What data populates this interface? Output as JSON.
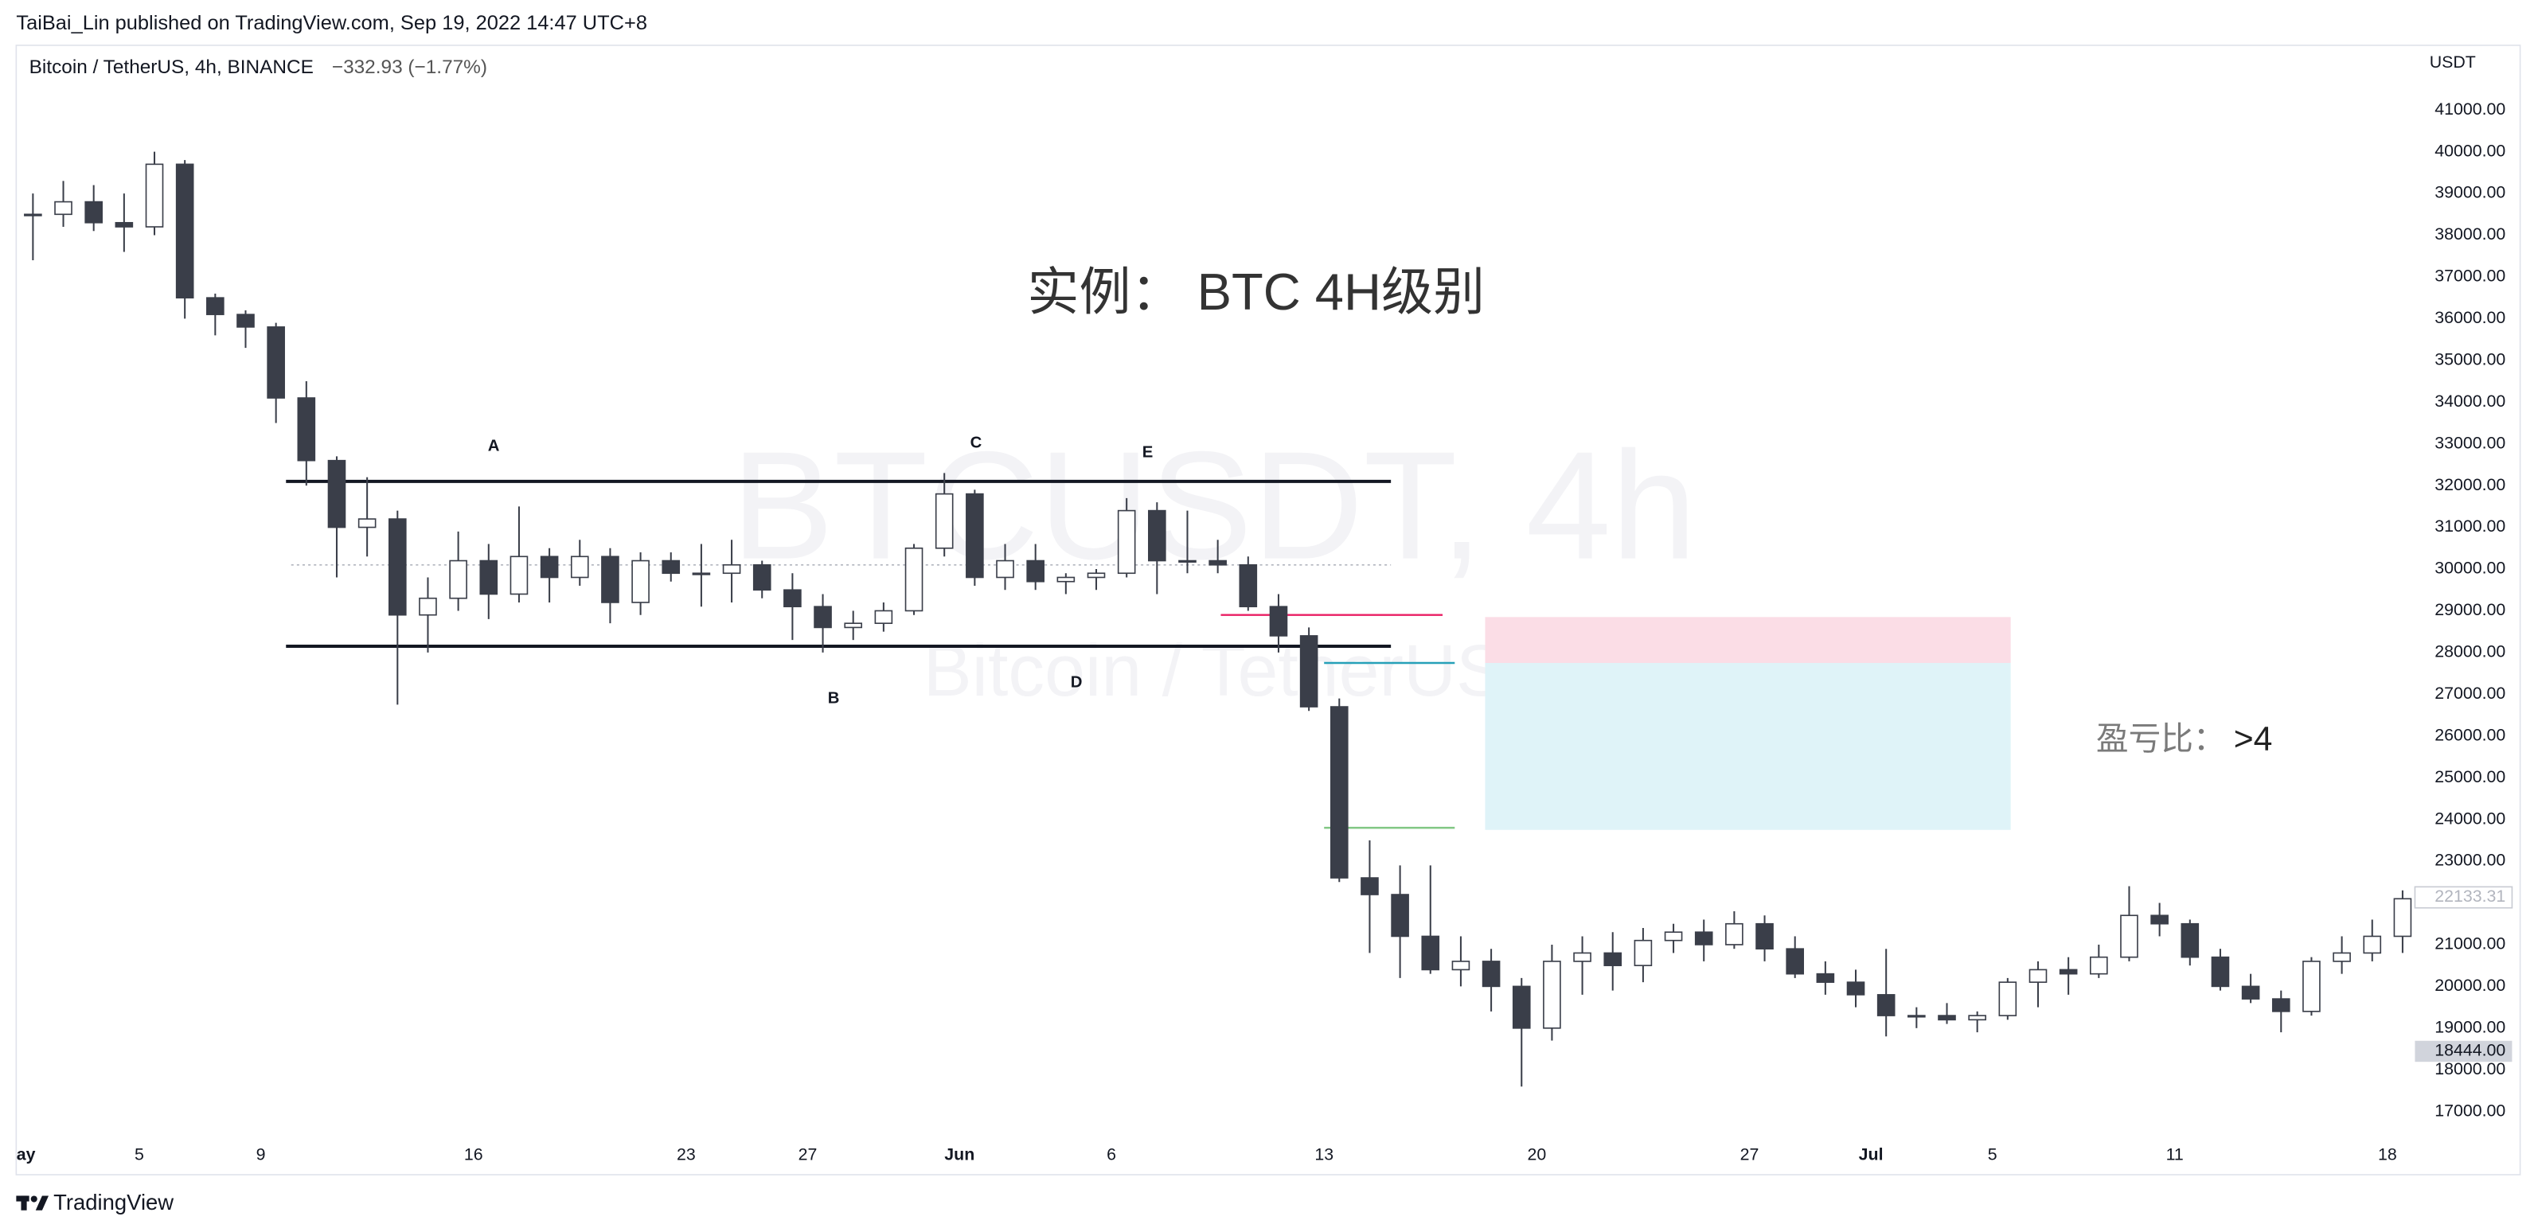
{
  "page": {
    "published": "TaiBai_Lin published on TradingView.com, Sep 19, 2022 14:47 UTC+8",
    "footer": "TradingView"
  },
  "chart_data": {
    "type": "candlestick",
    "legend": "Bitcoin / TetherUS, 4h, BINANCE",
    "change": "−332.93 (−1.77%)",
    "unit": "USDT",
    "title": "实例：  BTC 4H级别",
    "ratio_label": "盈亏比：",
    "ratio_value": ">4",
    "watermark": [
      "BTCUSDT, 4h",
      "Bitcoin / TetherUS"
    ],
    "annotations": [
      "A",
      "B",
      "C",
      "D",
      "E"
    ],
    "up_color": "#ffffff",
    "down_color": "#3a3e49",
    "wick_color": "#3a3e49",
    "x": [
      1,
      2,
      3,
      4,
      5,
      6,
      7,
      8,
      9,
      10,
      11,
      12,
      13,
      14,
      15,
      16,
      17,
      18,
      19,
      20,
      21,
      22,
      23,
      24,
      25,
      26,
      27,
      28,
      29,
      30,
      31,
      32,
      33,
      34,
      35,
      36,
      37,
      38,
      39,
      40,
      41,
      42,
      43,
      44,
      45,
      46,
      47,
      48,
      49,
      50,
      51,
      52,
      53,
      54,
      55,
      56,
      57,
      58,
      59,
      60,
      61,
      62,
      63,
      64,
      65,
      66,
      67,
      68,
      69,
      70,
      71,
      72,
      73,
      74,
      75,
      76,
      77,
      78,
      79
    ],
    "open": [
      38500,
      38500,
      38800,
      38300,
      38200,
      39700,
      36500,
      36100,
      35800,
      34100,
      32600,
      31000,
      31200,
      28900,
      29300,
      30200,
      29400,
      30300,
      29800,
      30300,
      29200,
      30200,
      29900,
      29900,
      30100,
      29500,
      29100,
      28600,
      28700,
      29000,
      30500,
      31800,
      29800,
      30200,
      29700,
      29800,
      29900,
      31400,
      30200,
      30200,
      30100,
      29100,
      28400,
      26700,
      22600,
      22200,
      21200,
      20400,
      20600,
      20000,
      19000,
      20600,
      20800,
      20500,
      21100,
      21300,
      21000,
      21500,
      20900,
      20300,
      20100,
      19800,
      19300,
      19300,
      19200,
      19300,
      20100,
      20400,
      20300,
      20700,
      21700,
      21500,
      20700,
      20000,
      19700,
      19400,
      20600,
      20800,
      21200
    ],
    "high": [
      39000,
      39300,
      39200,
      39000,
      40000,
      39800,
      36600,
      36200,
      35900,
      34500,
      32700,
      32200,
      31400,
      29800,
      30900,
      30600,
      31500,
      30500,
      30700,
      30500,
      30400,
      30400,
      30600,
      30700,
      30200,
      29900,
      29400,
      29000,
      29200,
      30600,
      32300,
      31900,
      30600,
      30600,
      29900,
      30000,
      31700,
      31600,
      31400,
      30700,
      30300,
      29400,
      28600,
      26900,
      23500,
      22900,
      22900,
      21200,
      20900,
      20200,
      21000,
      21200,
      21300,
      21400,
      21500,
      21600,
      21800,
      21700,
      21200,
      20600,
      20400,
      20900,
      19500,
      19600,
      19400,
      20200,
      20600,
      20700,
      21000,
      22400,
      22000,
      21600,
      20900,
      20300,
      19900,
      20700,
      21200,
      21600,
      22300
    ],
    "low": [
      37400,
      38200,
      38100,
      37600,
      38000,
      36000,
      35600,
      35300,
      33500,
      32000,
      29800,
      30300,
      26750,
      28000,
      29000,
      28800,
      29200,
      29200,
      29600,
      28700,
      28900,
      29700,
      29100,
      29200,
      29300,
      28300,
      28000,
      28300,
      28500,
      28900,
      30300,
      29600,
      29500,
      29500,
      29400,
      29500,
      29800,
      29400,
      29900,
      29900,
      29000,
      28000,
      26600,
      22500,
      20800,
      20200,
      20300,
      20000,
      19400,
      17600,
      18700,
      19800,
      19900,
      20100,
      20800,
      20600,
      20900,
      20600,
      20200,
      19800,
      19500,
      18800,
      19000,
      19100,
      18900,
      19200,
      19500,
      19800,
      20200,
      20600,
      21200,
      20500,
      19900,
      19600,
      18900,
      19300,
      20300,
      20600,
      20800
    ],
    "close": [
      38500,
      38800,
      38300,
      38200,
      39700,
      36500,
      36100,
      35800,
      34100,
      32600,
      31000,
      31200,
      28900,
      29300,
      30200,
      29400,
      30300,
      29800,
      30300,
      29200,
      30200,
      29900,
      29900,
      30100,
      29500,
      29100,
      28600,
      28700,
      29000,
      30500,
      31800,
      29800,
      30200,
      29700,
      29800,
      29900,
      31400,
      30200,
      30200,
      30100,
      29100,
      28400,
      26700,
      22600,
      22200,
      21200,
      20400,
      20600,
      20000,
      19000,
      20600,
      20800,
      20500,
      21100,
      21300,
      21000,
      21500,
      20900,
      20300,
      20100,
      19800,
      19300,
      19300,
      19200,
      19300,
      20100,
      20400,
      20300,
      20700,
      21700,
      21500,
      20700,
      20000,
      19700,
      19400,
      20600,
      20800,
      21200,
      22100
    ],
    "xlim": [
      0.95,
      79.8
    ],
    "xticks": [
      {
        "value": 1,
        "label": "ay"
      },
      5,
      9,
      16,
      23,
      27,
      {
        "value": 32,
        "label": "Jun"
      },
      {
        "value": 37,
        "label": "6"
      },
      {
        "value": 44,
        "label": "13"
      },
      {
        "value": 51,
        "label": "20"
      },
      {
        "value": 58,
        "label": "27"
      },
      {
        "value": 62,
        "label": "Jul"
      },
      {
        "value": 66,
        "label": "5"
      },
      {
        "value": 72,
        "label": "11"
      },
      {
        "value": 79,
        "label": "18"
      }
    ],
    "ylim": [
      16340,
      42550
    ],
    "yticks": [
      {
        "value": 17000,
        "label": "17000.00"
      },
      {
        "value": 18000,
        "label": "18000.00"
      },
      {
        "value": 19000,
        "label": "19000.00"
      },
      {
        "value": 20000,
        "label": "20000.00"
      },
      {
        "value": 21000,
        "label": "21000.00"
      },
      {
        "value": 22000,
        "label": "22000.00"
      },
      {
        "value": 23000,
        "label": "23000.00"
      },
      {
        "value": 24000,
        "label": "24000.00"
      },
      {
        "value": 25000,
        "label": "25000.00"
      },
      {
        "value": 26000,
        "label": "26000.00"
      },
      {
        "value": 27000,
        "label": "27000.00"
      },
      {
        "value": 28000,
        "label": "28000.00"
      },
      {
        "value": 29000,
        "label": "29000.00"
      },
      {
        "value": 30000,
        "label": "30000.00"
      },
      {
        "value": 31000,
        "label": "31000.00"
      },
      {
        "value": 32000,
        "label": "32000.00"
      },
      {
        "value": 33000,
        "label": "33000.00"
      },
      {
        "value": 34000,
        "label": "34000.00"
      },
      {
        "value": 35000,
        "label": "35000.00"
      },
      {
        "value": 36000,
        "label": "36000.00"
      },
      {
        "value": 37000,
        "label": "37000.00"
      },
      {
        "value": 38000,
        "label": "38000.00"
      },
      {
        "value": 39000,
        "label": "39000.00"
      },
      {
        "value": 40000,
        "label": "40000.00"
      },
      {
        "value": 41000,
        "label": "41000.00"
      }
    ],
    "grid": false,
    "levels": [
      {
        "price": 32100,
        "from": 9.83,
        "to": 46.2,
        "color": "#131722",
        "width": 2,
        "dashed": false
      },
      {
        "price": 28150,
        "from": 9.83,
        "to": 46.2,
        "color": "#131722",
        "width": 2,
        "dashed": false
      },
      {
        "price": 30100,
        "from": 10,
        "to": 46.2,
        "color": "#b2b5be",
        "width": 0.8,
        "dashed": true
      },
      {
        "price": 28900,
        "from": 40.6,
        "to": 47.9,
        "color": "#e91e63",
        "width": 1.2,
        "dashed": false
      },
      {
        "price": 27750,
        "from": 44.0,
        "to": 48.3,
        "color": "#26a0b8",
        "width": 1.2,
        "dashed": false
      },
      {
        "price": 23800,
        "from": 44.0,
        "to": 48.3,
        "color": "#81c784",
        "width": 1.2,
        "dashed": false
      }
    ],
    "zones": [
      {
        "top": 28850,
        "bottom": 27750,
        "from": 49.3,
        "to": 66.6,
        "color": "#fbdde6"
      },
      {
        "top": 27750,
        "bottom": 23750,
        "from": 49.3,
        "to": 66.6,
        "color": "#dff3f8"
      }
    ],
    "price_labels": [
      {
        "value": 22133.31,
        "label": "22133.31",
        "style": "outline"
      },
      {
        "value": 18444,
        "label": "18444.00",
        "style": "filled"
      }
    ]
  }
}
